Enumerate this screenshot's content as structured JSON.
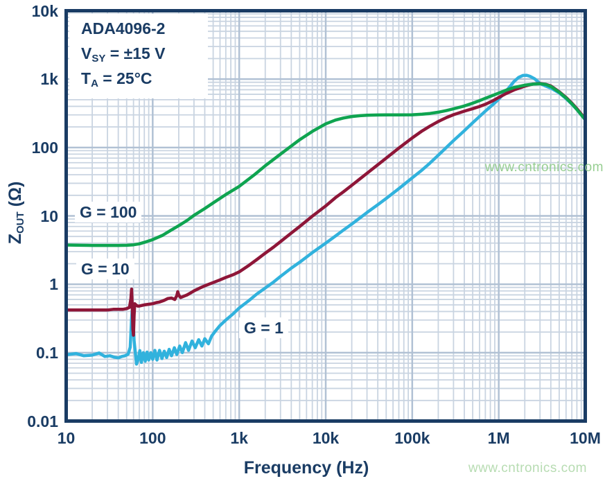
{
  "annotation": {
    "lines": [
      {
        "pre": "ADA4096-2",
        "sub": "",
        "post": ""
      },
      {
        "pre": "V",
        "sub": "SY",
        "post": " = ±15 V"
      },
      {
        "pre": "T",
        "sub": "A",
        "post": " = 25°C"
      }
    ]
  },
  "axis": {
    "ylabel_main": "Z",
    "ylabel_sub": "OUT",
    "ylabel_post": " (Ω)",
    "xlabel": "Frequency (Hz)"
  },
  "watermark": {
    "text": "www.cntronics.com",
    "color_mid": "#98cf93",
    "color_bottom": "#b7dcb2"
  },
  "colors": {
    "axis_text": "#1a3c64",
    "border": "#1a3c64",
    "grid_major": "#b1c1d4",
    "grid_minor": "#c9d4e1",
    "g100": "#0fa450",
    "g10": "#8e1638",
    "g1": "#31b2dd"
  },
  "chart_data": {
    "type": "line",
    "title": "ADA4096-2 Output Impedance vs Frequency",
    "xlabel": "Frequency (Hz)",
    "ylabel": "ZOUT (Ohms)",
    "x_scale": "log",
    "y_scale": "log",
    "xlim": [
      10,
      10000000
    ],
    "ylim": [
      0.01,
      10000
    ],
    "x_tick_labels": [
      "10",
      "100",
      "1k",
      "10k",
      "100k",
      "1M",
      "10M"
    ],
    "y_tick_labels": [
      "10k",
      "1k",
      "100",
      "10",
      "1",
      "0.1",
      "0.01"
    ],
    "grid": true,
    "legend_position": "inline-labels",
    "series": [
      {
        "name": "G = 1",
        "color": "#31b2dd",
        "points": [
          [
            10,
            0.093
          ],
          [
            13,
            0.097
          ],
          [
            16,
            0.09
          ],
          [
            20,
            0.092
          ],
          [
            24,
            0.099
          ],
          [
            28,
            0.088
          ],
          [
            32,
            0.09
          ],
          [
            36,
            0.086
          ],
          [
            40,
            0.084
          ],
          [
            44,
            0.088
          ],
          [
            48,
            0.09
          ],
          [
            52,
            0.095
          ],
          [
            55,
            0.12
          ],
          [
            57,
            0.32
          ],
          [
            58,
            0.42
          ],
          [
            59,
            0.38
          ],
          [
            61,
            0.15
          ],
          [
            63,
            0.1
          ],
          [
            65,
            0.068
          ],
          [
            68,
            0.08
          ],
          [
            71,
            0.107
          ],
          [
            74,
            0.072
          ],
          [
            78,
            0.1
          ],
          [
            82,
            0.075
          ],
          [
            86,
            0.102
          ],
          [
            90,
            0.078
          ],
          [
            95,
            0.1
          ],
          [
            100,
            0.08
          ],
          [
            106,
            0.108
          ],
          [
            112,
            0.078
          ],
          [
            120,
            0.108
          ],
          [
            128,
            0.082
          ],
          [
            136,
            0.105
          ],
          [
            145,
            0.085
          ],
          [
            155,
            0.112
          ],
          [
            165,
            0.09
          ],
          [
            178,
            0.118
          ],
          [
            190,
            0.094
          ],
          [
            205,
            0.125
          ],
          [
            220,
            0.1
          ],
          [
            240,
            0.14
          ],
          [
            260,
            0.108
          ],
          [
            285,
            0.148
          ],
          [
            310,
            0.118
          ],
          [
            340,
            0.155
          ],
          [
            370,
            0.125
          ],
          [
            400,
            0.16
          ],
          [
            440,
            0.135
          ],
          [
            480,
            0.175
          ],
          [
            520,
            0.2
          ],
          [
            600,
            0.25
          ],
          [
            700,
            0.3
          ],
          [
            850,
            0.37
          ],
          [
            1000,
            0.45
          ],
          [
            1300,
            0.58
          ],
          [
            1600,
            0.72
          ],
          [
            2000,
            0.88
          ],
          [
            2500,
            1.08
          ],
          [
            3000,
            1.3
          ],
          [
            4000,
            1.72
          ],
          [
            5000,
            2.1
          ],
          [
            7000,
            2.9
          ],
          [
            10000,
            4.0
          ],
          [
            13000,
            5.1
          ],
          [
            16000,
            6.2
          ],
          [
            20000,
            7.6
          ],
          [
            25000,
            9.4
          ],
          [
            30000,
            11.2
          ],
          [
            40000,
            14.6
          ],
          [
            50000,
            18
          ],
          [
            70000,
            25
          ],
          [
            100000,
            36
          ],
          [
            130000,
            47
          ],
          [
            160000,
            59
          ],
          [
            200000,
            77
          ],
          [
            250000,
            101
          ],
          [
            300000,
            126
          ],
          [
            400000,
            176
          ],
          [
            500000,
            230
          ],
          [
            600000,
            285
          ],
          [
            700000,
            340
          ],
          [
            800000,
            395
          ],
          [
            900000,
            450
          ],
          [
            1000000,
            510
          ],
          [
            1100000,
            580
          ],
          [
            1200000,
            660
          ],
          [
            1350000,
            780
          ],
          [
            1500000,
            920
          ],
          [
            1700000,
            1060
          ],
          [
            1900000,
            1130
          ],
          [
            2100000,
            1140
          ],
          [
            2300000,
            1100
          ],
          [
            2600000,
            1010
          ],
          [
            3000000,
            865
          ],
          [
            3500000,
            790
          ],
          [
            4000000,
            740
          ],
          [
            5000000,
            630
          ],
          [
            6000000,
            520
          ],
          [
            7000000,
            430
          ],
          [
            8000000,
            360
          ],
          [
            10000000,
            256
          ]
        ]
      },
      {
        "name": "G = 10",
        "color": "#8e1638",
        "points": [
          [
            10,
            0.42
          ],
          [
            15,
            0.42
          ],
          [
            20,
            0.42
          ],
          [
            25,
            0.42
          ],
          [
            30,
            0.42
          ],
          [
            35,
            0.43
          ],
          [
            40,
            0.43
          ],
          [
            45,
            0.43
          ],
          [
            50,
            0.44
          ],
          [
            54,
            0.46
          ],
          [
            56,
            0.62
          ],
          [
            57,
            0.85
          ],
          [
            58,
            0.5
          ],
          [
            59,
            0.22
          ],
          [
            60,
            0.18
          ],
          [
            61,
            0.35
          ],
          [
            62,
            0.52
          ],
          [
            64,
            0.5
          ],
          [
            67,
            0.48
          ],
          [
            70,
            0.48
          ],
          [
            75,
            0.49
          ],
          [
            80,
            0.5
          ],
          [
            90,
            0.51
          ],
          [
            100,
            0.52
          ],
          [
            110,
            0.54
          ],
          [
            120,
            0.55
          ],
          [
            135,
            0.58
          ],
          [
            150,
            0.62
          ],
          [
            165,
            0.63
          ],
          [
            180,
            0.6
          ],
          [
            190,
            0.68
          ],
          [
            195,
            0.78
          ],
          [
            200,
            0.7
          ],
          [
            210,
            0.64
          ],
          [
            230,
            0.67
          ],
          [
            250,
            0.7
          ],
          [
            280,
            0.76
          ],
          [
            300,
            0.8
          ],
          [
            350,
            0.88
          ],
          [
            400,
            0.95
          ],
          [
            500,
            1.06
          ],
          [
            600,
            1.16
          ],
          [
            700,
            1.26
          ],
          [
            850,
            1.38
          ],
          [
            1000,
            1.52
          ],
          [
            1300,
            1.9
          ],
          [
            1600,
            2.3
          ],
          [
            2000,
            2.85
          ],
          [
            2500,
            3.5
          ],
          [
            3000,
            4.2
          ],
          [
            4000,
            5.6
          ],
          [
            5000,
            7.0
          ],
          [
            7000,
            9.9
          ],
          [
            10000,
            14
          ],
          [
            13000,
            18.5
          ],
          [
            16000,
            22.5
          ],
          [
            20000,
            28
          ],
          [
            25000,
            35
          ],
          [
            30000,
            42
          ],
          [
            40000,
            56
          ],
          [
            50000,
            70
          ],
          [
            70000,
            98
          ],
          [
            100000,
            138
          ],
          [
            130000,
            175
          ],
          [
            160000,
            205
          ],
          [
            200000,
            240
          ],
          [
            250000,
            275
          ],
          [
            300000,
            302
          ],
          [
            400000,
            340
          ],
          [
            500000,
            370
          ],
          [
            600000,
            398
          ],
          [
            700000,
            428
          ],
          [
            850000,
            480
          ],
          [
            1000000,
            540
          ],
          [
            1200000,
            610
          ],
          [
            1500000,
            695
          ],
          [
            2000000,
            790
          ],
          [
            2500000,
            848
          ],
          [
            3000000,
            862
          ],
          [
            3500000,
            840
          ],
          [
            4000000,
            795
          ],
          [
            5000000,
            655
          ],
          [
            6000000,
            540
          ],
          [
            7000000,
            445
          ],
          [
            8000000,
            370
          ],
          [
            10000000,
            262
          ]
        ]
      },
      {
        "name": "G = 100",
        "color": "#0fa450",
        "points": [
          [
            10,
            3.75
          ],
          [
            15,
            3.72
          ],
          [
            20,
            3.7
          ],
          [
            30,
            3.7
          ],
          [
            40,
            3.7
          ],
          [
            50,
            3.72
          ],
          [
            60,
            3.78
          ],
          [
            70,
            3.9
          ],
          [
            80,
            4.1
          ],
          [
            100,
            4.5
          ],
          [
            130,
            5.2
          ],
          [
            160,
            6.1
          ],
          [
            200,
            7.2
          ],
          [
            250,
            8.6
          ],
          [
            300,
            10.2
          ],
          [
            400,
            12.8
          ],
          [
            500,
            15.5
          ],
          [
            700,
            20.5
          ],
          [
            1000,
            27
          ],
          [
            1500,
            40
          ],
          [
            2000,
            54
          ],
          [
            3000,
            80
          ],
          [
            4000,
            105
          ],
          [
            5000,
            130
          ],
          [
            7000,
            172
          ],
          [
            10000,
            222
          ],
          [
            13000,
            252
          ],
          [
            16000,
            270
          ],
          [
            20000,
            284
          ],
          [
            25000,
            292
          ],
          [
            30000,
            296
          ],
          [
            40000,
            299
          ],
          [
            50000,
            300
          ],
          [
            70000,
            300
          ],
          [
            100000,
            301
          ],
          [
            130000,
            307
          ],
          [
            160000,
            315
          ],
          [
            200000,
            328
          ],
          [
            250000,
            348
          ],
          [
            300000,
            368
          ],
          [
            400000,
            405
          ],
          [
            500000,
            445
          ],
          [
            600000,
            485
          ],
          [
            700000,
            525
          ],
          [
            800000,
            560
          ],
          [
            1000000,
            625
          ],
          [
            1200000,
            685
          ],
          [
            1500000,
            755
          ],
          [
            2000000,
            815
          ],
          [
            2500000,
            845
          ],
          [
            3000000,
            855
          ],
          [
            3500000,
            835
          ],
          [
            4000000,
            780
          ],
          [
            5000000,
            645
          ],
          [
            6000000,
            530
          ],
          [
            7000000,
            435
          ],
          [
            8000000,
            360
          ],
          [
            10000000,
            255
          ]
        ]
      }
    ]
  }
}
